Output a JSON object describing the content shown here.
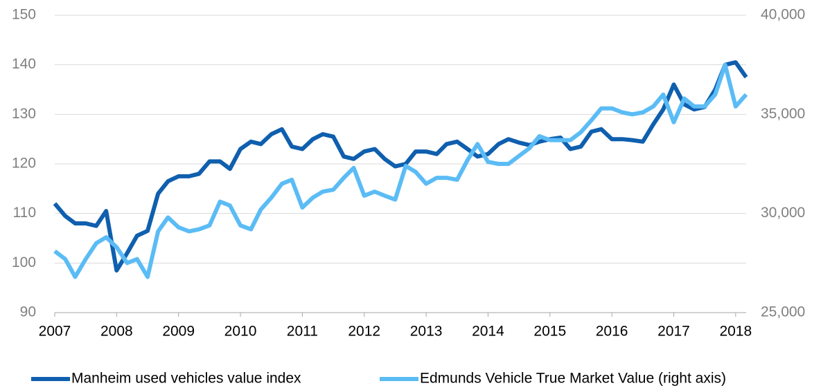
{
  "chart_data": {
    "type": "line",
    "x": [
      2007,
      2007.17,
      2007.33,
      2007.5,
      2007.67,
      2007.83,
      2008,
      2008.17,
      2008.33,
      2008.5,
      2008.67,
      2008.83,
      2009,
      2009.17,
      2009.33,
      2009.5,
      2009.67,
      2009.83,
      2010,
      2010.17,
      2010.33,
      2010.5,
      2010.67,
      2010.83,
      2011,
      2011.17,
      2011.33,
      2011.5,
      2011.67,
      2011.83,
      2012,
      2012.17,
      2012.33,
      2012.5,
      2012.67,
      2012.83,
      2013,
      2013.17,
      2013.33,
      2013.5,
      2013.67,
      2013.83,
      2014,
      2014.17,
      2014.33,
      2014.5,
      2014.67,
      2014.83,
      2015,
      2015.17,
      2015.33,
      2015.5,
      2015.67,
      2015.83,
      2016,
      2016.17,
      2016.33,
      2016.5,
      2016.67,
      2016.83,
      2017,
      2017.17,
      2017.33,
      2017.5,
      2017.67,
      2017.83,
      2018,
      2018.17
    ],
    "series": [
      {
        "name": "Manheim used vehicles value index",
        "color": "#0f5fae",
        "values": [
          112,
          109.5,
          108,
          108,
          107.5,
          110.5,
          98.5,
          102,
          105.5,
          106.5,
          114,
          116.5,
          117.5,
          117.5,
          118,
          120.5,
          120.5,
          119,
          123,
          124.5,
          124,
          126,
          127,
          123.5,
          123,
          125,
          126,
          125.5,
          121.5,
          121,
          122.5,
          123,
          121,
          119.5,
          120,
          122.5,
          122.5,
          122,
          124,
          124.5,
          123,
          121.5,
          122,
          124,
          125,
          124.3,
          123.8,
          124.5,
          125,
          125.3,
          123,
          123.5,
          126.5,
          127,
          125,
          125,
          124.8,
          124.5,
          128,
          131,
          136,
          132,
          131,
          131.5,
          135,
          140,
          140.5,
          137.5
        ]
      },
      {
        "name": "Edmunds Vehicle True Market Value (right axis)",
        "color": "#5bbcf5",
        "axis": "y2",
        "values": [
          28100,
          27700,
          26800,
          27700,
          28500,
          28800,
          28300,
          27500,
          27700,
          26800,
          29100,
          29800,
          29300,
          29100,
          29200,
          29400,
          30600,
          30400,
          29400,
          29200,
          30200,
          30800,
          31500,
          31700,
          30300,
          30800,
          31100,
          31200,
          31800,
          32300,
          30900,
          31100,
          30900,
          30700,
          32400,
          32100,
          31500,
          31800,
          31800,
          31700,
          32700,
          33500,
          32600,
          32500,
          32500,
          32900,
          33300,
          33900,
          33700,
          33700,
          33700,
          34100,
          34700,
          35300,
          35300,
          35100,
          35000,
          35100,
          35400,
          36000,
          34600,
          35800,
          35400,
          35400,
          36000,
          37500,
          35400,
          36000
        ]
      }
    ],
    "xlim": [
      2007,
      2018.17
    ],
    "xticks": [
      2007,
      2008,
      2009,
      2010,
      2011,
      2012,
      2013,
      2014,
      2015,
      2016,
      2017,
      2018
    ],
    "ylim": [
      90,
      150
    ],
    "yticks": [
      90,
      100,
      110,
      120,
      130,
      140,
      150
    ],
    "y2lim": [
      25000,
      40000
    ],
    "y2ticks": [
      {
        "value": 25000,
        "label": "25,000"
      },
      {
        "value": 30000,
        "label": "30,000"
      },
      {
        "value": 35000,
        "label": "35,000"
      },
      {
        "value": 40000,
        "label": "40,000"
      }
    ],
    "grid": true,
    "legend": "bottom"
  }
}
